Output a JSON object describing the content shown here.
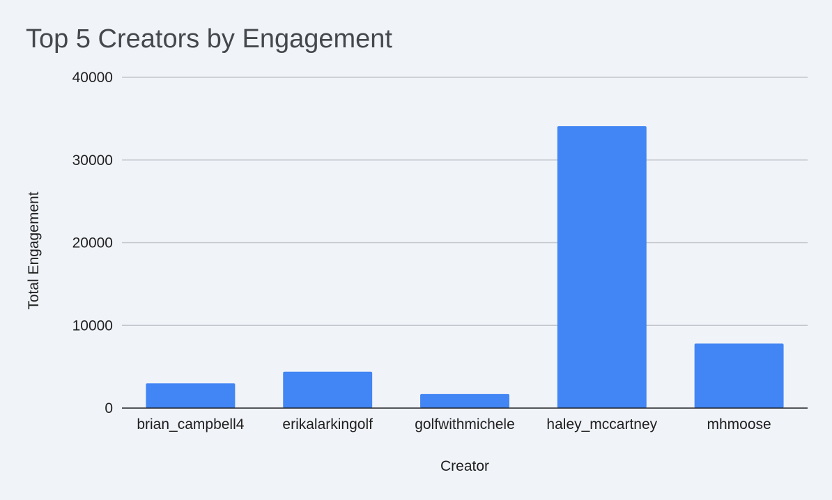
{
  "chart_data": {
    "type": "bar",
    "title": "Top 5 Creators by Engagement",
    "xlabel": "Creator",
    "ylabel": "Total Engagement",
    "categories": [
      "brian_campbell4",
      "erikalarkingolf",
      "golfwithmichele",
      "haley_mccartney",
      "mhmoose"
    ],
    "values": [
      3000,
      4400,
      1700,
      34100,
      7800
    ],
    "ylim": [
      0,
      40000
    ],
    "yticks": [
      "0",
      "10000",
      "20000",
      "30000",
      "40000"
    ],
    "grid": true,
    "legend": "none",
    "bar_color": "#4285f4"
  }
}
